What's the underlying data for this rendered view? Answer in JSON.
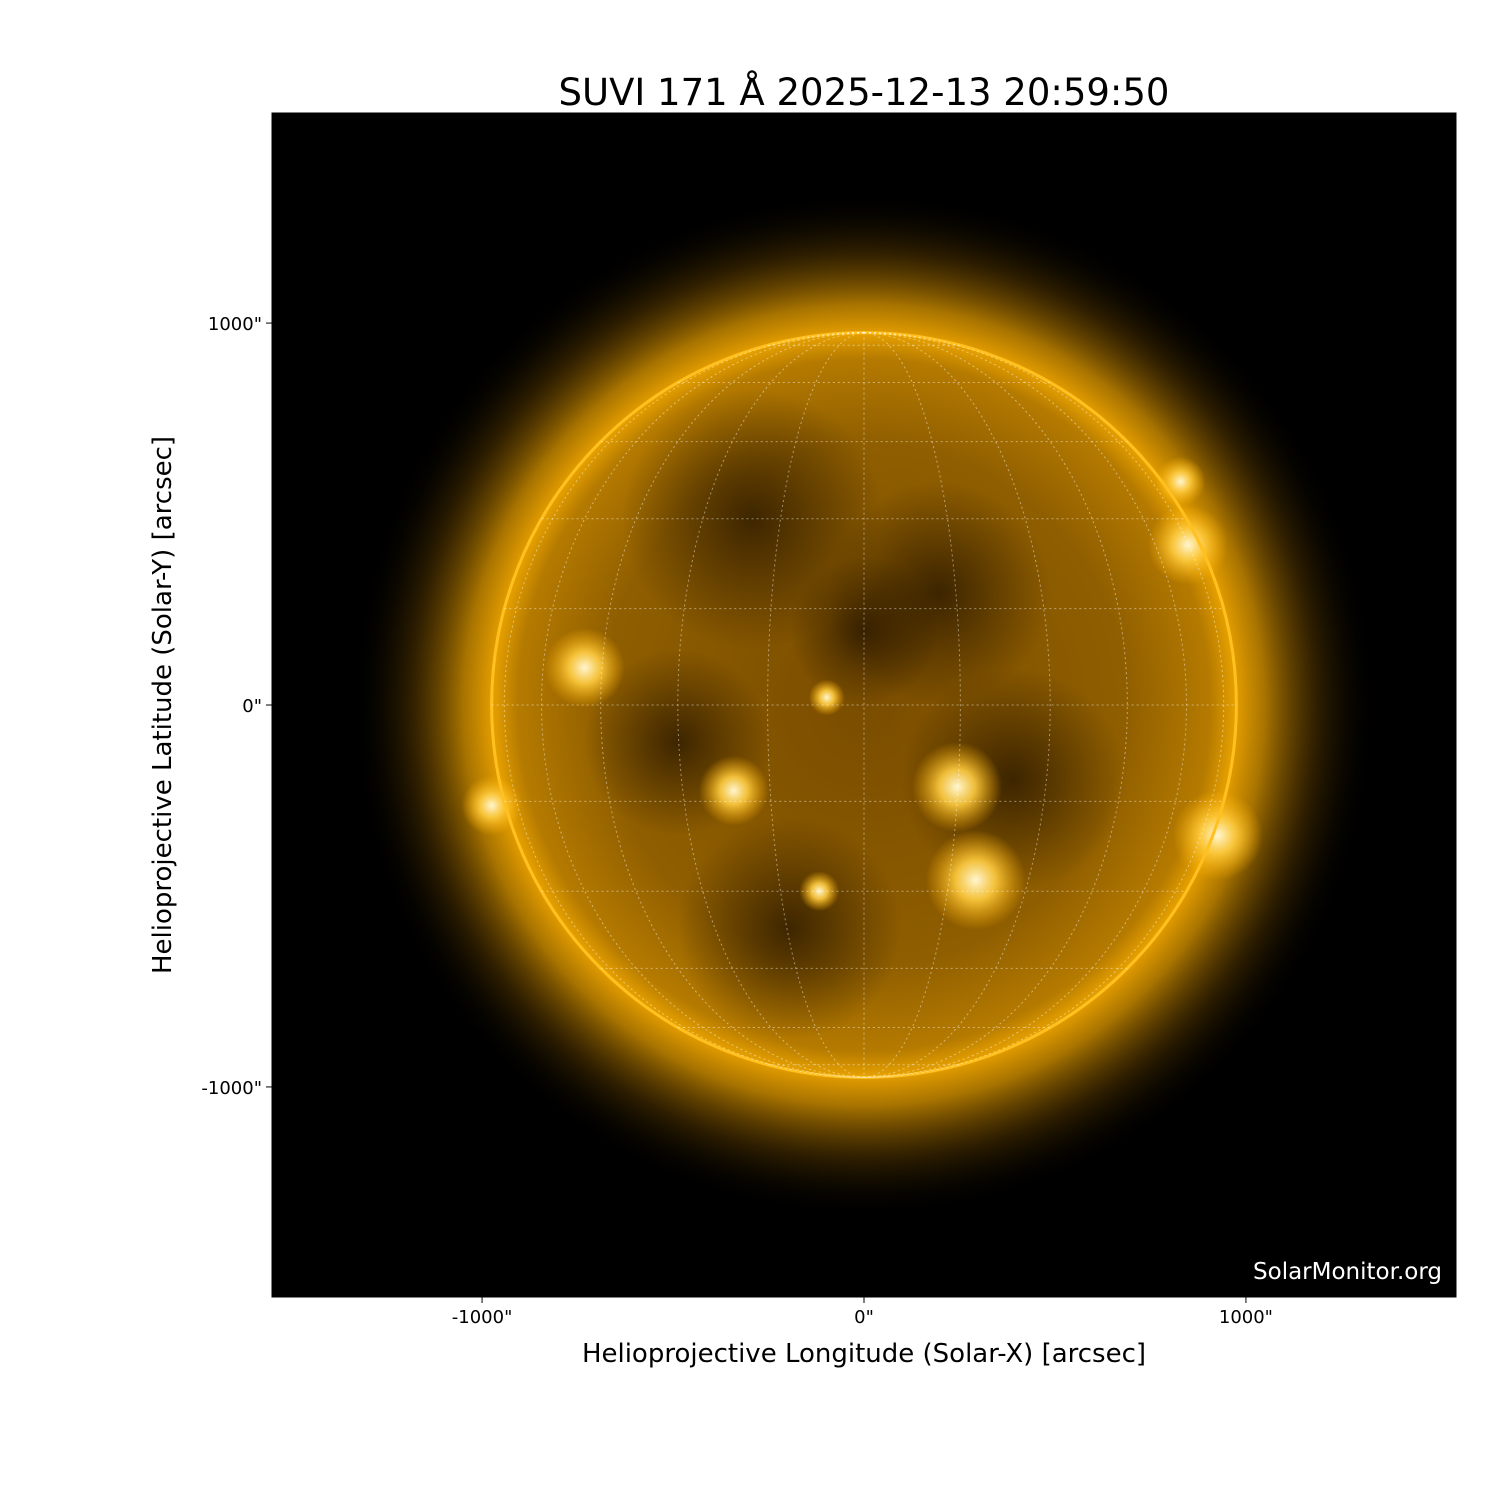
{
  "chart_data": {
    "type": "image",
    "title": "SUVI 171 Å 2025-12-13 20:59:50",
    "xlabel": "Helioprojective Longitude (Solar-X) [arcsec]",
    "ylabel": "Helioprojective Latitude (Solar-Y) [arcsec]",
    "xlim": [
      -1550,
      1550
    ],
    "ylim": [
      -1550,
      1550
    ],
    "x_ticks": [
      {
        "value": -1000,
        "label": "-1000\""
      },
      {
        "value": 0,
        "label": "0\""
      },
      {
        "value": 1000,
        "label": "1000\""
      }
    ],
    "y_ticks": [
      {
        "value": 1000,
        "label": "1000\""
      },
      {
        "value": 0,
        "label": "0\""
      },
      {
        "value": -1000,
        "label": "-1000\""
      }
    ],
    "solar_radius_arcsec": 975,
    "grid": "heliographic, dotted",
    "colormap": "goes-suvi 171 (black-orange-white)",
    "colors": {
      "background": "#000000",
      "disk": "#a86e00",
      "limb": "#ffb400",
      "bright": "#fff3c0"
    }
  },
  "watermark": "SolarMonitor.org"
}
